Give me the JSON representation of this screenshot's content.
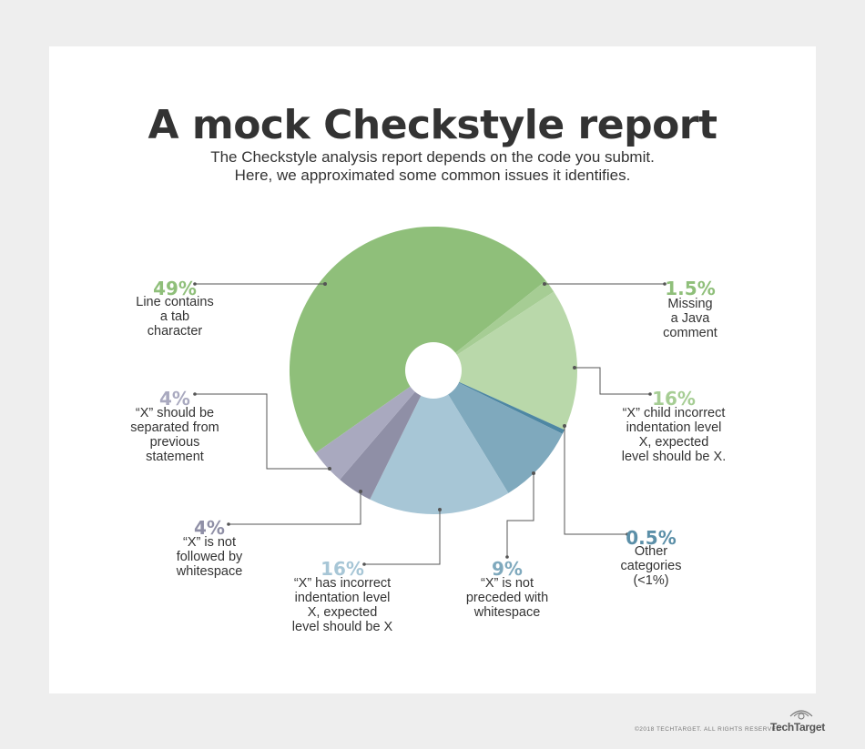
{
  "header": {
    "title": "A mock Checkstyle report",
    "subtitle_line1": "The Checkstyle analysis report depends on the code you submit.",
    "subtitle_line2": "Here, we approximated some common issues it identifies."
  },
  "chart_data": {
    "type": "pie",
    "donut_hole": true,
    "slices": [
      {
        "value": 49,
        "label": "49%",
        "text": [
          "Line contains",
          "a tab",
          "character"
        ],
        "color": "#8fbf7a",
        "label_color": "#8fbf7a"
      },
      {
        "value": 1.5,
        "label": "1.5%",
        "text": [
          "Missing",
          "a Java",
          "comment"
        ],
        "color": "#a6cd94",
        "label_color": "#8fbf7a"
      },
      {
        "value": 16,
        "label": "16%",
        "text": [
          "“X” child incorrect",
          "indentation level",
          "X, expected",
          "level should be X."
        ],
        "color": "#b9d8aa",
        "label_color": "#a6cd94"
      },
      {
        "value": 0.5,
        "label": "0.5%",
        "text": [
          "Other",
          "categories",
          "(<1%)"
        ],
        "color": "#4e87a3",
        "label_color": "#5b8fa8"
      },
      {
        "value": 9,
        "label": "9%",
        "text": [
          "“X” is not",
          "preceded with",
          "whitespace"
        ],
        "color": "#7fa9bd",
        "label_color": "#7fa9bd"
      },
      {
        "value": 16,
        "label": "16%",
        "text": [
          "“X” has incorrect",
          "indentation level",
          "X, expected",
          "level should be X"
        ],
        "color": "#a7c6d6",
        "label_color": "#a7c6d6"
      },
      {
        "value": 4,
        "label": "4%",
        "text": [
          "“X” is not",
          "followed by",
          "whitespace"
        ],
        "color": "#8f8fa6",
        "label_color": "#8f8fa6"
      },
      {
        "value": 4,
        "label": "4%",
        "text": [
          "“X” should be",
          "separated from",
          "previous",
          "statement"
        ],
        "color": "#a9a9bf",
        "label_color": "#a9a9bf"
      }
    ]
  },
  "footer": {
    "copyright": "©2018 TECHTARGET. ALL RIGHTS RESERVED",
    "brand": "TechTarget"
  }
}
